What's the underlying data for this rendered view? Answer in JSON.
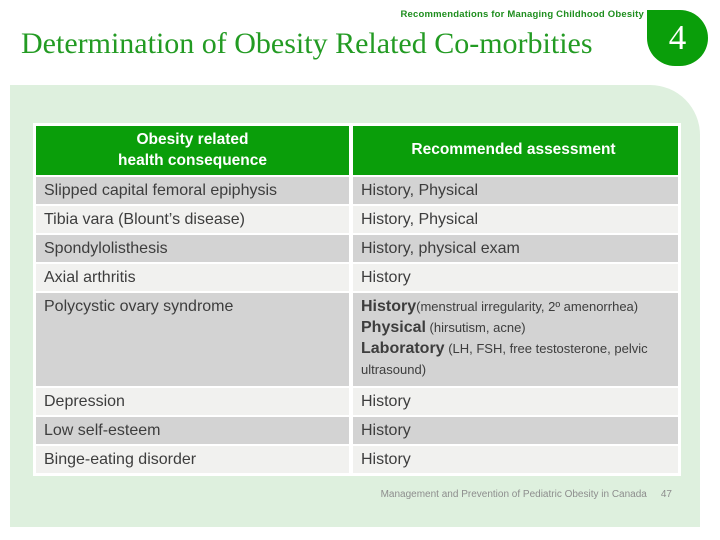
{
  "header": {
    "eyebrow": "Recommendations for Managing Childhood Obesity",
    "title": "Determination of Obesity Related Co-morbities",
    "slide_number": "4"
  },
  "table": {
    "header": {
      "col1_line1": "Obesity related",
      "col1_line2": "health consequence",
      "col2": "Recommended assessment"
    },
    "rows": [
      {
        "condition": "Slipped capital femoral epiphysis",
        "assessment": [
          {
            "lead": "",
            "detail": "History, Physical"
          }
        ]
      },
      {
        "condition": "Tibia vara (Blount’s disease)",
        "assessment": [
          {
            "lead": "",
            "detail": "History, Physical"
          }
        ]
      },
      {
        "condition": "Spondylolisthesis",
        "assessment": [
          {
            "lead": "",
            "detail": "History, physical exam"
          }
        ]
      },
      {
        "condition": "Axial arthritis",
        "assessment": [
          {
            "lead": "",
            "detail": "History"
          }
        ]
      },
      {
        "condition": "Polycystic ovary syndrome",
        "assessment": [
          {
            "lead": "History",
            "detail": "(menstrual irregularity, 2º amenorrhea)"
          },
          {
            "lead": "Physical",
            "detail": " (hirsutism, acne)"
          },
          {
            "lead": "Laboratory",
            "detail": " (LH, FSH, free testosterone, pelvic ultrasound)"
          }
        ]
      },
      {
        "condition": "Depression",
        "assessment": [
          {
            "lead": "",
            "detail": "History"
          }
        ]
      },
      {
        "condition": "Low self-esteem",
        "assessment": [
          {
            "lead": "",
            "detail": "History"
          }
        ]
      },
      {
        "condition": "Binge-eating disorder",
        "assessment": [
          {
            "lead": "",
            "detail": "History"
          }
        ]
      }
    ]
  },
  "footer": {
    "text": "Management and Prevention of Pediatric Obesity in Canada",
    "page_number": "47"
  },
  "colors": {
    "accent_green": "#0a9e0a",
    "title_green": "#239b23",
    "content_bg": "#def0de",
    "row_dark": "#d3d3d3",
    "row_light": "#f1f1ef"
  }
}
